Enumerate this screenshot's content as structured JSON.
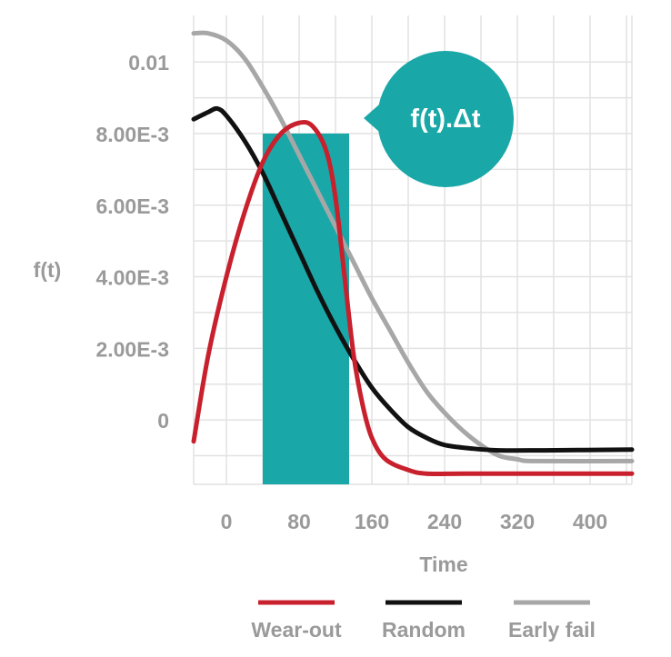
{
  "chart_data": {
    "type": "line",
    "title": "",
    "xlabel": "Time",
    "ylabel": "f(t)",
    "xlim": [
      -36,
      446
    ],
    "ylim": [
      -0.0018,
      0.0113
    ],
    "grid": true,
    "x_ticks": [
      {
        "value": 0,
        "label": "0"
      },
      {
        "value": 80,
        "label": "80"
      },
      {
        "value": 160,
        "label": "160"
      },
      {
        "value": 240,
        "label": "240"
      },
      {
        "value": 320,
        "label": "320"
      },
      {
        "value": 400,
        "label": "400"
      }
    ],
    "y_ticks": [
      {
        "value": 0,
        "label": "0"
      },
      {
        "value": 0.002,
        "label": "2.00E-3"
      },
      {
        "value": 0.004,
        "label": "4.00E-3"
      },
      {
        "value": 0.006,
        "label": "6.00E-3"
      },
      {
        "value": 0.008,
        "label": "8.00E-3"
      },
      {
        "value": 0.01,
        "label": "0.01"
      }
    ],
    "legend_position": "bottom",
    "series": [
      {
        "name": "Wear-out",
        "color": "#c8202c",
        "points": [
          [
            -36,
            -0.0006
          ],
          [
            -20,
            0.0018
          ],
          [
            0,
            0.004
          ],
          [
            20,
            0.0058
          ],
          [
            40,
            0.0072
          ],
          [
            60,
            0.008
          ],
          [
            80,
            0.0083
          ],
          [
            95,
            0.0082
          ],
          [
            110,
            0.0075
          ],
          [
            120,
            0.0062
          ],
          [
            130,
            0.004
          ],
          [
            140,
            0.0018
          ],
          [
            150,
            0.0004
          ],
          [
            160,
            -0.0005
          ],
          [
            175,
            -0.0011
          ],
          [
            200,
            -0.0014
          ],
          [
            220,
            -0.0015
          ],
          [
            260,
            -0.0015
          ],
          [
            320,
            -0.0015
          ],
          [
            446,
            -0.0015
          ]
        ]
      },
      {
        "name": "Random",
        "color": "#111111",
        "points": [
          [
            -36,
            0.0084
          ],
          [
            -20,
            0.0086
          ],
          [
            -10,
            0.0087
          ],
          [
            0,
            0.0085
          ],
          [
            20,
            0.0078
          ],
          [
            40,
            0.0069
          ],
          [
            60,
            0.0058
          ],
          [
            80,
            0.0047
          ],
          [
            100,
            0.0036
          ],
          [
            120,
            0.0026
          ],
          [
            140,
            0.0017
          ],
          [
            160,
            0.0009
          ],
          [
            180,
            0.0003
          ],
          [
            200,
            -0.0002
          ],
          [
            220,
            -0.0005
          ],
          [
            240,
            -0.0007
          ],
          [
            270,
            -0.0008
          ],
          [
            300,
            -0.00085
          ],
          [
            350,
            -0.00085
          ],
          [
            446,
            -0.00083
          ]
        ]
      },
      {
        "name": "Early fail",
        "color": "#a7a7a7",
        "points": [
          [
            -36,
            0.0108
          ],
          [
            -20,
            0.0108
          ],
          [
            0,
            0.0106
          ],
          [
            20,
            0.0101
          ],
          [
            40,
            0.0093
          ],
          [
            60,
            0.0084
          ],
          [
            80,
            0.0074
          ],
          [
            100,
            0.0064
          ],
          [
            120,
            0.0054
          ],
          [
            140,
            0.0044
          ],
          [
            160,
            0.0034
          ],
          [
            180,
            0.0025
          ],
          [
            200,
            0.0016
          ],
          [
            220,
            0.0008
          ],
          [
            240,
            0.0002
          ],
          [
            260,
            -0.0003
          ],
          [
            280,
            -0.0007
          ],
          [
            300,
            -0.001
          ],
          [
            320,
            -0.0011
          ],
          [
            340,
            -0.00115
          ],
          [
            446,
            -0.00115
          ]
        ]
      }
    ],
    "highlight_bar": {
      "x_start": 40,
      "x_end": 135,
      "y_top": 0.008,
      "color": "#1aa7a8"
    },
    "annotation": {
      "text": "f(t).Δt",
      "color": "#1aa7a8"
    }
  }
}
